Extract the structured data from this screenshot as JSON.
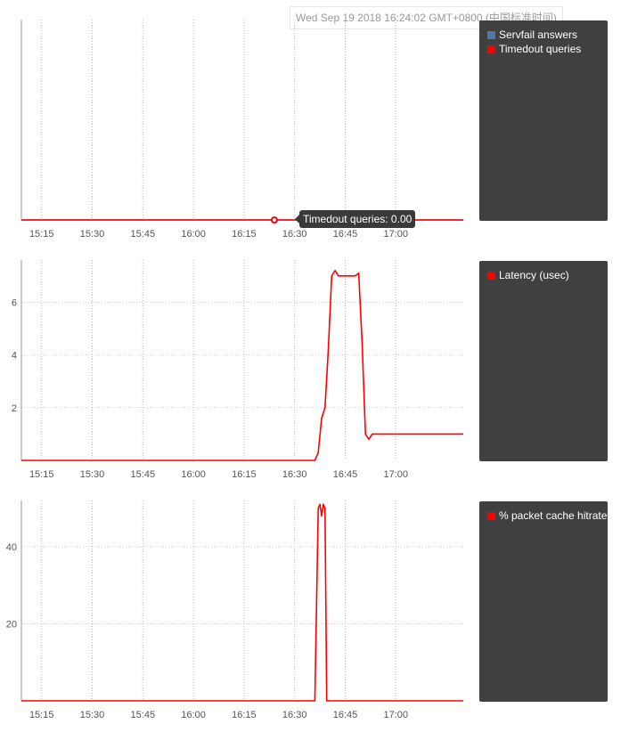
{
  "hover": {
    "date_label": "Wed Sep 19 2018 16:24:02 GMT+0800 (中国标准时间)",
    "tooltip_label": "Timedout queries: 0.00"
  },
  "chart_data": [
    {
      "type": "line",
      "x_ticks": [
        "15:15",
        "15:30",
        "15:45",
        "16:00",
        "16:15",
        "16:30",
        "16:45",
        "17:00"
      ],
      "x_range": [
        "15:09",
        "17:20"
      ],
      "y_range": [
        0,
        1
      ],
      "y_ticks": [],
      "grid": "vertical",
      "legend": "right",
      "series": [
        {
          "name": "Servfail answers",
          "color": "#4e79a7",
          "points": [
            [
              "15:09",
              0
            ],
            [
              "17:20",
              0
            ]
          ]
        },
        {
          "name": "Timedout queries",
          "color": "#ff0000",
          "points": [
            [
              "15:09",
              0
            ],
            [
              "17:20",
              0
            ]
          ]
        }
      ],
      "hover_point": {
        "series": "Timedout queries",
        "x": "16:24",
        "y": 0.0
      }
    },
    {
      "type": "line",
      "x_ticks": [
        "15:15",
        "15:30",
        "15:45",
        "16:00",
        "16:15",
        "16:30",
        "16:45",
        "17:00"
      ],
      "x_range": [
        "15:09",
        "17:20"
      ],
      "y_range": [
        0,
        7.6
      ],
      "y_ticks": [
        2,
        4,
        6
      ],
      "grid": "both",
      "legend": "right",
      "series": [
        {
          "name": "Latency (usec)",
          "color": "#ff0000",
          "points": [
            [
              "15:09",
              0
            ],
            [
              "16:36",
              0
            ],
            [
              "16:37",
              0.3
            ],
            [
              "16:38",
              1.6
            ],
            [
              "16:39",
              2.0
            ],
            [
              "16:40",
              4.2
            ],
            [
              "16:41",
              7.0
            ],
            [
              "16:42",
              7.2
            ],
            [
              "16:43",
              7.0
            ],
            [
              "16:47",
              7.0
            ],
            [
              "16:48",
              7.0
            ],
            [
              "16:49",
              7.1
            ],
            [
              "16:50",
              4.5
            ],
            [
              "16:51",
              1.0
            ],
            [
              "16:52",
              0.8
            ],
            [
              "16:53",
              1.0
            ],
            [
              "17:20",
              1.0
            ]
          ]
        }
      ]
    },
    {
      "type": "line",
      "x_ticks": [
        "15:15",
        "15:30",
        "15:45",
        "16:00",
        "16:15",
        "16:30",
        "16:45",
        "17:00"
      ],
      "x_range": [
        "15:09",
        "17:20"
      ],
      "y_range": [
        0,
        52
      ],
      "y_ticks": [
        20,
        40
      ],
      "grid": "both",
      "legend": "right",
      "series": [
        {
          "name": "% packet cache hitrate",
          "color": "#ff0000",
          "points": [
            [
              "15:09",
              0
            ],
            [
              "16:36",
              0
            ],
            [
              "16:37",
              50
            ],
            [
              "16:37.5",
              51
            ],
            [
              "16:38",
              48
            ],
            [
              "16:38.5",
              51
            ],
            [
              "16:39",
              50
            ],
            [
              "16:39.5",
              0
            ],
            [
              "17:20",
              0
            ]
          ]
        }
      ]
    }
  ]
}
